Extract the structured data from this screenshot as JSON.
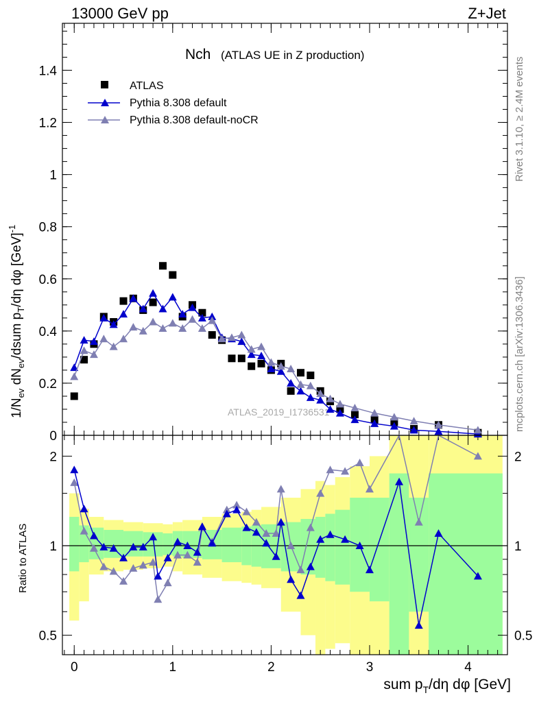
{
  "header": {
    "energy_label": "13000 GeV pp",
    "process_label": "Z+Jet"
  },
  "side_labels": {
    "rivet": "Rivet 3.1.10, ≥ 2.4M events",
    "mcplots": "mcplots.cern.ch [arXiv:1306.3436]"
  },
  "chart_data": {
    "type": "scatter",
    "title_main": "Nch",
    "title_sub": "(ATLAS UE in Z production)",
    "watermark": "ATLAS_2019_I1736531",
    "x_axis": {
      "label": "sum p_T/dη dφ [GeV]",
      "range": [
        -0.12,
        4.4
      ],
      "ticks": [
        "0",
        "1",
        "2",
        "3",
        "4"
      ]
    },
    "y_axis_main": {
      "label": "1/N_ev dN_ev/dsum p_T/dη dφ [GeV]^-1",
      "range": [
        0,
        1.58
      ],
      "ticks": [
        "0",
        "0.2",
        "0.4",
        "0.6",
        "0.8",
        "1",
        "1.2",
        "1.4"
      ]
    },
    "y_axis_ratio": {
      "label": "Ratio to ATLAS",
      "scale": "log",
      "range": [
        0.43,
        2.35
      ],
      "ticks": [
        "0.5",
        "1",
        "2"
      ]
    },
    "legend_position": "top-left",
    "x": [
      0.0,
      0.1,
      0.2,
      0.3,
      0.4,
      0.5,
      0.6,
      0.7,
      0.8,
      0.9,
      1.0,
      1.1,
      1.2,
      1.3,
      1.4,
      1.5,
      1.6,
      1.7,
      1.8,
      1.9,
      2.0,
      2.1,
      2.2,
      2.3,
      2.4,
      2.5,
      2.6,
      2.7,
      2.85,
      3.05,
      3.25,
      3.45,
      3.7,
      4.1
    ],
    "series": [
      {
        "name": "ATLAS",
        "color": "#000000",
        "marker": "square",
        "values": [
          0.15,
          0.29,
          0.35,
          0.455,
          0.435,
          0.515,
          0.525,
          0.48,
          0.51,
          0.65,
          0.615,
          0.455,
          0.5,
          0.47,
          0.385,
          0.365,
          0.295,
          0.295,
          0.265,
          0.275,
          0.25,
          0.275,
          0.17,
          0.24,
          0.23,
          0.17,
          0.13,
          0.1,
          0.08,
          0.06,
          0.05,
          0.025,
          0.04,
          0.01
        ]
      },
      {
        "name": "Pythia 8.308 default",
        "color": "#0000cc",
        "marker": "triangle",
        "values": [
          0.26,
          0.365,
          0.36,
          0.45,
          0.425,
          0.465,
          0.525,
          0.485,
          0.545,
          0.485,
          0.53,
          0.465,
          0.49,
          0.45,
          0.455,
          0.375,
          0.37,
          0.36,
          0.31,
          0.305,
          0.255,
          0.245,
          0.2,
          0.17,
          0.145,
          0.135,
          0.1,
          0.085,
          0.06,
          0.045,
          0.035,
          0.02,
          0.015,
          0.005
        ]
      },
      {
        "name": "Pythia 8.308 default-noCR",
        "color": "#7f7fb2",
        "marker": "triangle",
        "values": [
          0.225,
          0.325,
          0.31,
          0.37,
          0.34,
          0.37,
          0.415,
          0.4,
          0.435,
          0.41,
          0.43,
          0.41,
          0.445,
          0.41,
          0.44,
          0.37,
          0.375,
          0.385,
          0.33,
          0.34,
          0.28,
          0.265,
          0.255,
          0.195,
          0.19,
          0.16,
          0.14,
          0.12,
          0.105,
          0.085,
          0.07,
          0.055,
          0.04,
          0.02
        ]
      }
    ],
    "ratio_series": [
      {
        "name": "Pythia 8.308 default",
        "values": [
          1.8,
          1.33,
          1.08,
          0.99,
          0.98,
          0.91,
          0.99,
          0.99,
          1.07,
          0.79,
          0.91,
          1.03,
          1.0,
          0.95,
          1.16,
          1.02,
          1.28,
          1.32,
          1.15,
          1.11,
          1.02,
          0.92,
          1.2,
          0.77,
          0.68,
          0.85,
          1.05,
          1.09,
          1.05,
          1.0,
          0.83,
          1.64,
          0.54,
          1.1,
          0.79
        ]
      },
      {
        "name": "Pythia 8.308 default-noCR",
        "values": [
          1.63,
          1.12,
          0.98,
          0.85,
          0.82,
          0.76,
          0.84,
          0.86,
          0.88,
          0.66,
          0.75,
          0.93,
          0.93,
          0.88,
          1.15,
          1.03,
          1.32,
          1.37,
          1.3,
          1.2,
          1.1,
          1.1,
          1.55,
          1.0,
          0.83,
          1.15,
          1.5,
          1.8,
          1.78,
          1.9,
          1.55,
          2.6,
          1.2,
          2.5,
          2.0
        ]
      }
    ],
    "ratio_x": [
      0.0,
      0.1,
      0.2,
      0.3,
      0.4,
      0.5,
      0.6,
      0.7,
      0.8,
      0.85,
      0.95,
      1.05,
      1.15,
      1.25,
      1.3,
      1.4,
      1.55,
      1.65,
      1.75,
      1.85,
      1.95,
      2.05,
      2.1,
      2.2,
      2.3,
      2.4,
      2.5,
      2.6,
      2.75,
      2.9,
      3.0,
      3.3,
      3.5,
      3.7,
      4.1
    ],
    "uncertainty_band": {
      "colors": {
        "inner": "#9cfc9c",
        "outer": "#fcfc8c"
      },
      "bins": [
        {
          "x0": -0.05,
          "x1": 0.05,
          "in_lo": 0.82,
          "in_hi": 1.25,
          "out_lo": 0.56,
          "out_hi": 1.5
        },
        {
          "x0": 0.05,
          "x1": 0.15,
          "in_lo": 0.88,
          "in_hi": 1.17,
          "out_lo": 0.65,
          "out_hi": 1.33
        },
        {
          "x0": 0.15,
          "x1": 0.3,
          "in_lo": 0.9,
          "in_hi": 1.15,
          "out_lo": 0.8,
          "out_hi": 1.25
        },
        {
          "x0": 0.3,
          "x1": 0.5,
          "in_lo": 0.91,
          "in_hi": 1.13,
          "out_lo": 0.82,
          "out_hi": 1.22
        },
        {
          "x0": 0.5,
          "x1": 0.7,
          "in_lo": 0.92,
          "in_hi": 1.12,
          "out_lo": 0.83,
          "out_hi": 1.2
        },
        {
          "x0": 0.7,
          "x1": 0.9,
          "in_lo": 0.92,
          "in_hi": 1.11,
          "out_lo": 0.84,
          "out_hi": 1.19
        },
        {
          "x0": 0.9,
          "x1": 1.0,
          "in_lo": 0.93,
          "in_hi": 1.1,
          "out_lo": 0.85,
          "out_hi": 1.18
        },
        {
          "x0": 1.0,
          "x1": 1.1,
          "in_lo": 0.92,
          "in_hi": 1.12,
          "out_lo": 0.82,
          "out_hi": 1.2
        },
        {
          "x0": 1.1,
          "x1": 1.3,
          "in_lo": 0.91,
          "in_hi": 1.12,
          "out_lo": 0.8,
          "out_hi": 1.22
        },
        {
          "x0": 1.3,
          "x1": 1.5,
          "in_lo": 0.9,
          "in_hi": 1.13,
          "out_lo": 0.78,
          "out_hi": 1.25
        },
        {
          "x0": 1.5,
          "x1": 1.7,
          "in_lo": 0.88,
          "in_hi": 1.15,
          "out_lo": 0.76,
          "out_hi": 1.28
        },
        {
          "x0": 1.7,
          "x1": 1.8,
          "in_lo": 0.86,
          "in_hi": 1.16,
          "out_lo": 0.75,
          "out_hi": 1.3
        },
        {
          "x0": 1.8,
          "x1": 1.9,
          "in_lo": 0.85,
          "in_hi": 1.17,
          "out_lo": 0.74,
          "out_hi": 1.32
        },
        {
          "x0": 1.9,
          "x1": 2.1,
          "in_lo": 0.84,
          "in_hi": 1.18,
          "out_lo": 0.72,
          "out_hi": 1.35
        },
        {
          "x0": 2.1,
          "x1": 2.3,
          "in_lo": 0.82,
          "in_hi": 1.2,
          "out_lo": 0.6,
          "out_hi": 1.45
        },
        {
          "x0": 2.3,
          "x1": 2.45,
          "in_lo": 0.8,
          "in_hi": 1.23,
          "out_lo": 0.5,
          "out_hi": 1.55
        },
        {
          "x0": 2.45,
          "x1": 2.55,
          "in_lo": 0.78,
          "in_hi": 1.25,
          "out_lo": 0.4,
          "out_hi": 1.65
        },
        {
          "x0": 2.55,
          "x1": 2.65,
          "in_lo": 0.76,
          "in_hi": 1.28,
          "out_lo": 0.45,
          "out_hi": 1.6
        },
        {
          "x0": 2.65,
          "x1": 2.8,
          "in_lo": 0.74,
          "in_hi": 1.32,
          "out_lo": 0.47,
          "out_hi": 1.7
        },
        {
          "x0": 2.8,
          "x1": 3.0,
          "in_lo": 0.7,
          "in_hi": 1.45,
          "out_lo": 0.35,
          "out_hi": 1.85
        },
        {
          "x0": 3.0,
          "x1": 3.2,
          "in_lo": 0.65,
          "in_hi": 1.45,
          "out_lo": 0.35,
          "out_hi": 2.0
        },
        {
          "x0": 3.2,
          "x1": 3.4,
          "in_lo": 0.35,
          "in_hi": 1.75,
          "out_lo": 0.35,
          "out_hi": 2.6
        },
        {
          "x0": 3.4,
          "x1": 3.6,
          "in_lo": 0.6,
          "in_hi": 1.45,
          "out_lo": 0.35,
          "out_hi": 2.6
        },
        {
          "x0": 3.6,
          "x1": 4.35,
          "in_lo": 0.35,
          "in_hi": 1.75,
          "out_lo": 0.35,
          "out_hi": 2.6
        }
      ]
    }
  }
}
